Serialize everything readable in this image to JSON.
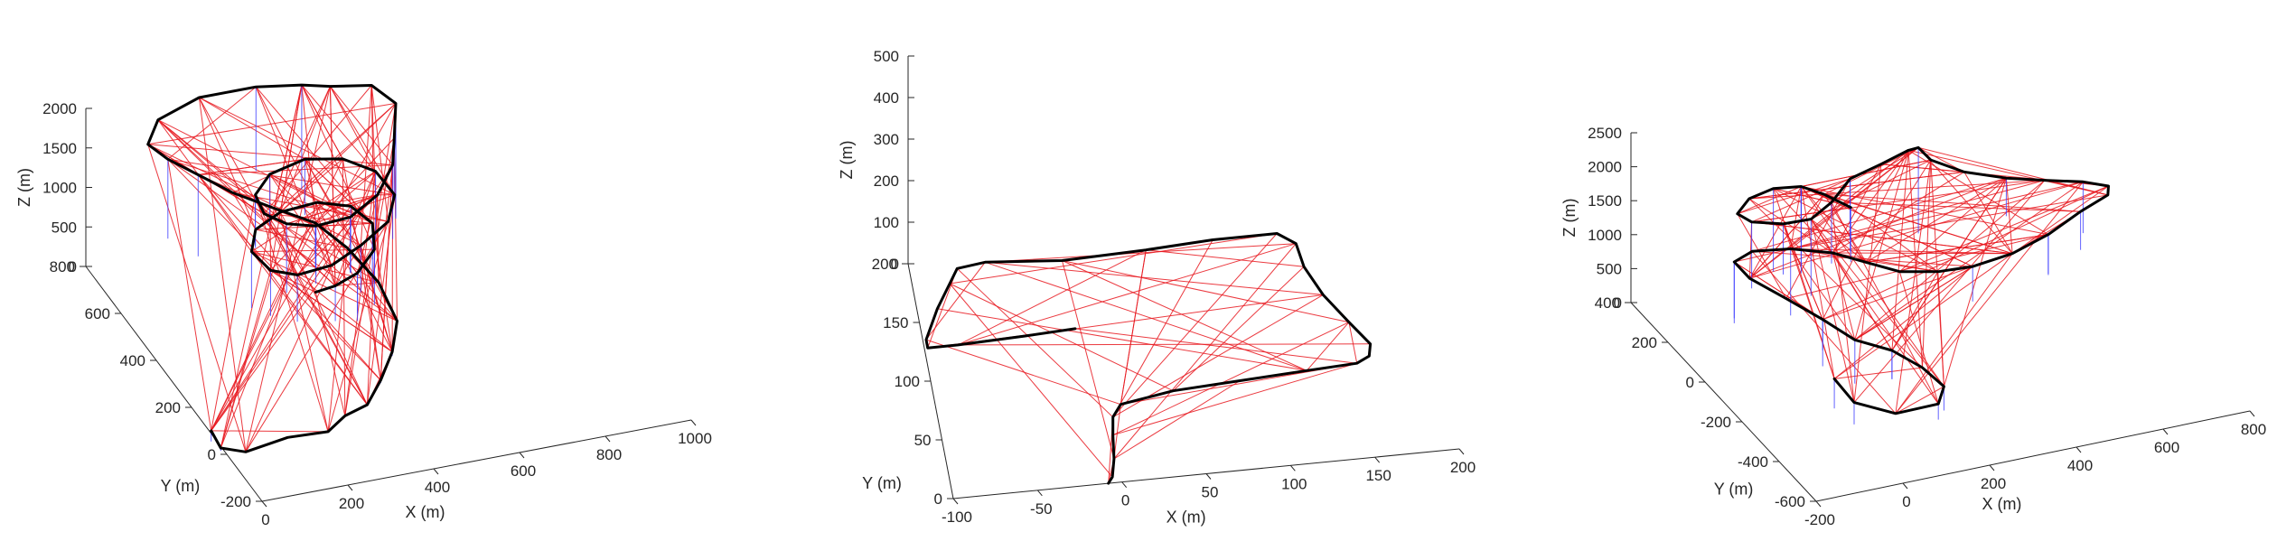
{
  "colors": {
    "trajectory": "#000000",
    "loop_closure_xy": "#e8171f",
    "loop_closure_z": "#3c3cff",
    "axes": "#262626"
  },
  "chart_data": [
    {
      "type": "line",
      "view": "3d",
      "xlabel": "X (m)",
      "ylabel": "Y (m)",
      "zlabel": "Z (m)",
      "xlim": [
        0,
        1000
      ],
      "ylim": [
        -200,
        800
      ],
      "zlim": [
        0,
        2000
      ],
      "x_ticks": [
        0,
        200,
        400,
        600,
        800,
        1000
      ],
      "y_ticks": [
        -200,
        0,
        200,
        400,
        600,
        800
      ],
      "z_ticks": [
        0,
        500,
        1000,
        1500,
        2000
      ],
      "series": [
        {
          "role": "trajectory",
          "color": "#000000",
          "points": [
            [
              -20,
              40,
              200
            ],
            [
              -10,
              10,
              60
            ],
            [
              40,
              -10,
              20
            ],
            [
              150,
              20,
              0
            ],
            [
              240,
              10,
              10
            ],
            [
              300,
              60,
              0
            ],
            [
              360,
              80,
              20
            ],
            [
              420,
              150,
              60
            ],
            [
              480,
              230,
              120
            ],
            [
              520,
              300,
              260
            ],
            [
              510,
              380,
              520
            ],
            [
              470,
              460,
              760
            ],
            [
              420,
              520,
              950
            ],
            [
              340,
              560,
              1100
            ],
            [
              260,
              600,
              1260
            ],
            [
              200,
              650,
              1400
            ],
            [
              150,
              700,
              1500
            ],
            [
              120,
              740,
              1600
            ],
            [
              160,
              780,
              1750
            ],
            [
              260,
              790,
              1900
            ],
            [
              380,
              760,
              2000
            ],
            [
              470,
              720,
              2050
            ],
            [
              520,
              680,
              2100
            ],
            [
              600,
              640,
              2150
            ],
            [
              640,
              600,
              2000
            ],
            [
              620,
              560,
              1700
            ],
            [
              600,
              520,
              1500
            ],
            [
              540,
              460,
              1360
            ],
            [
              460,
              420,
              1280
            ],
            [
              380,
              420,
              1250
            ],
            [
              320,
              440,
              1280
            ],
            [
              280,
              470,
              1360
            ],
            [
              280,
              520,
              1450
            ],
            [
              330,
              560,
              1540
            ],
            [
              420,
              580,
              1580
            ],
            [
              500,
              560,
              1560
            ],
            [
              560,
              520,
              1460
            ],
            [
              580,
              460,
              1320
            ],
            [
              540,
              400,
              1200
            ],
            [
              460,
              360,
              1100
            ],
            [
              380,
              330,
              1020
            ],
            [
              300,
              330,
              980
            ],
            [
              250,
              360,
              1000
            ],
            [
              230,
              420,
              1080
            ],
            [
              260,
              470,
              1180
            ],
            [
              330,
              500,
              1240
            ],
            [
              420,
              510,
              1240
            ],
            [
              490,
              490,
              1180
            ],
            [
              520,
              440,
              1080
            ],
            [
              500,
              380,
              950
            ],
            [
              440,
              330,
              860
            ],
            [
              380,
              310,
              820
            ],
            [
              330,
              300,
              820
            ]
          ]
        },
        {
          "role": "loop_closures",
          "color": "#e8171f",
          "count": 160
        },
        {
          "role": "vertical_constraints",
          "color": "#3c3cff",
          "count": 40
        }
      ]
    },
    {
      "type": "line",
      "view": "3d",
      "xlabel": "X (m)",
      "ylabel": "Y (m)",
      "zlabel": "Z (m)",
      "xlim": [
        -100,
        200
      ],
      "ylim": [
        0,
        200
      ],
      "zlim": [
        0,
        500
      ],
      "x_ticks": [
        -100,
        -50,
        0,
        50,
        100,
        150,
        200
      ],
      "y_ticks": [
        0,
        50,
        100,
        150,
        200
      ],
      "z_ticks": [
        0,
        100,
        200,
        300,
        400,
        500
      ],
      "series": [
        {
          "role": "trajectory",
          "color": "#000000",
          "points": [
            [
              -8,
              0,
              0
            ],
            [
              -5,
              5,
              0
            ],
            [
              -2,
              20,
              0
            ],
            [
              0,
              40,
              0
            ],
            [
              2,
              55,
              0
            ],
            [
              8,
              65,
              0
            ],
            [
              40,
              72,
              0
            ],
            [
              80,
              75,
              0
            ],
            [
              120,
              78,
              0
            ],
            [
              150,
              80,
              0
            ],
            [
              158,
              85,
              0
            ],
            [
              160,
              95,
              0
            ],
            [
              150,
              115,
              0
            ],
            [
              138,
              140,
              0
            ],
            [
              130,
              165,
              0
            ],
            [
              128,
              185,
              0
            ],
            [
              118,
              195,
              0
            ],
            [
              80,
              195,
              0
            ],
            [
              40,
              192,
              0
            ],
            [
              -10,
              190,
              0
            ],
            [
              -55,
              195,
              0
            ],
            [
              -72,
              192,
              0
            ],
            [
              -78,
              180,
              0
            ],
            [
              -88,
              160,
              0
            ],
            [
              -98,
              135,
              0
            ],
            [
              -98,
              128,
              0
            ],
            [
              -80,
              128,
              0
            ],
            [
              -40,
              130,
              0
            ],
            [
              -10,
              132,
              0
            ]
          ]
        },
        {
          "role": "loop_closures",
          "color": "#e8171f",
          "count": 45
        }
      ]
    },
    {
      "type": "line",
      "view": "3d",
      "xlabel": "X (m)",
      "ylabel": "Y (m)",
      "zlabel": "Z (m)",
      "xlim": [
        -200,
        800
      ],
      "ylim": [
        -600,
        400
      ],
      "zlim": [
        0,
        2500
      ],
      "x_ticks": [
        -200,
        0,
        200,
        400,
        600,
        800
      ],
      "y_ticks": [
        -600,
        -400,
        -200,
        0,
        200,
        400
      ],
      "z_ticks": [
        0,
        500,
        1000,
        1500,
        2000,
        2500
      ],
      "series": [
        {
          "role": "trajectory",
          "color": "#000000",
          "points": [
            [
              -30,
              -300,
              700
            ],
            [
              -10,
              -360,
              500
            ],
            [
              60,
              -420,
              420
            ],
            [
              150,
              -440,
              500
            ],
            [
              180,
              -400,
              600
            ],
            [
              160,
              -330,
              700
            ],
            [
              120,
              -260,
              800
            ],
            [
              60,
              -200,
              860
            ],
            [
              20,
              -120,
              980
            ],
            [
              -30,
              -40,
              1120
            ],
            [
              -80,
              40,
              1250
            ],
            [
              -90,
              100,
              1330
            ],
            [
              -40,
              120,
              1360
            ],
            [
              40,
              100,
              1350
            ],
            [
              120,
              60,
              1300
            ],
            [
              180,
              20,
              1200
            ],
            [
              240,
              -20,
              1100
            ],
            [
              320,
              -40,
              1050
            ],
            [
              400,
              -40,
              1020
            ],
            [
              500,
              -20,
              1020
            ],
            [
              600,
              20,
              1050
            ],
            [
              700,
              80,
              1080
            ],
            [
              780,
              120,
              1100
            ],
            [
              790,
              140,
              1160
            ],
            [
              740,
              160,
              1230
            ],
            [
              660,
              180,
              1300
            ],
            [
              580,
              200,
              1380
            ],
            [
              500,
              240,
              1460
            ],
            [
              440,
              280,
              1600
            ],
            [
              420,
              300,
              1750
            ],
            [
              380,
              260,
              1880
            ],
            [
              300,
              220,
              1900
            ],
            [
              220,
              200,
              1850
            ],
            [
              160,
              160,
              1700
            ],
            [
              100,
              130,
              1620
            ],
            [
              40,
              140,
              1600
            ],
            [
              -20,
              170,
              1620
            ],
            [
              -40,
              200,
              1680
            ],
            [
              0,
              230,
              1760
            ],
            [
              60,
              240,
              1800
            ],
            [
              120,
              230,
              1780
            ],
            [
              160,
              200,
              1700
            ],
            [
              200,
              150,
              1600
            ]
          ]
        },
        {
          "role": "loop_closures",
          "color": "#e8171f",
          "count": 130
        },
        {
          "role": "vertical_constraints",
          "color": "#3c3cff",
          "count": 30
        }
      ]
    }
  ]
}
